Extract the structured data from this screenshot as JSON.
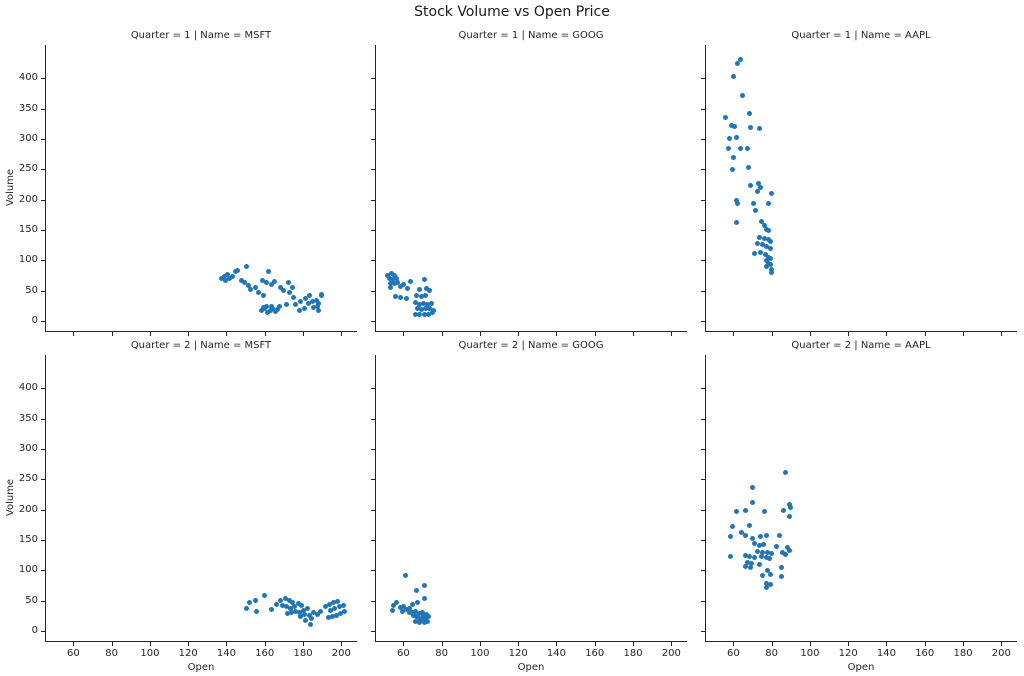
{
  "figure_title": "Stock Volume vs Open Price",
  "colors": {
    "dot": "#2176b5",
    "spine": "#262626",
    "text": "#262626"
  },
  "chart_data": {
    "type": "scatter",
    "title": "Stock Volume vs Open Price",
    "xlabel": "Open",
    "ylabel": "Volume",
    "xlim": [
      45.2,
      208.2
    ],
    "ylim": [
      -18.1,
      454.6
    ],
    "xticks": [
      60,
      80,
      100,
      120,
      140,
      160,
      180,
      200
    ],
    "yticks": [
      0,
      50,
      100,
      150,
      200,
      250,
      300,
      350,
      400
    ],
    "layout_hints": {
      "rows": 2,
      "cols": 3,
      "shared_x": true,
      "shared_y": true,
      "grid": false,
      "legend": "none",
      "spines": "left-bottom"
    },
    "facets": [
      {
        "row": 0,
        "col": 0,
        "title": "Quarter = 1 | Name = MSFT",
        "points": [
          [
            137.2,
            69.8
          ],
          [
            138.9,
            73.8
          ],
          [
            140.7,
            76.4
          ],
          [
            139.3,
            66.5
          ],
          [
            141.4,
            69.8
          ],
          [
            143.1,
            72.6
          ],
          [
            144.9,
            80.9
          ],
          [
            145.9,
            83
          ],
          [
            150.6,
            90.3
          ],
          [
            147.6,
            66.5
          ],
          [
            149.4,
            62.7
          ],
          [
            151.4,
            58.9
          ],
          [
            152.8,
            51.7
          ],
          [
            155.3,
            55.6
          ],
          [
            161.9,
            82
          ],
          [
            158.7,
            66.5
          ],
          [
            161,
            62.7
          ],
          [
            163.3,
            59.9
          ],
          [
            165,
            64.4
          ],
          [
            157,
            46.2
          ],
          [
            159.3,
            42.4
          ],
          [
            168,
            54.5
          ],
          [
            169.7,
            50
          ],
          [
            158.5,
            17
          ],
          [
            160,
            20
          ],
          [
            161.5,
            14.5
          ],
          [
            162.8,
            18
          ],
          [
            164.2,
            21
          ],
          [
            165.5,
            15.5
          ],
          [
            166.8,
            19
          ],
          [
            163.5,
            24
          ],
          [
            161,
            24.5
          ],
          [
            159.2,
            22.5
          ],
          [
            167.9,
            23.5
          ],
          [
            172.3,
            62.7
          ],
          [
            174.4,
            55.6
          ],
          [
            172.7,
            46.2
          ],
          [
            174.9,
            39.1
          ],
          [
            171.5,
            26.9
          ],
          [
            176.2,
            26.9
          ],
          [
            178.9,
            31.4
          ],
          [
            181.4,
            36.8
          ],
          [
            183.6,
            42.4
          ],
          [
            189.4,
            42.4
          ],
          [
            182.8,
            28.1
          ],
          [
            184.9,
            31.4
          ],
          [
            187.2,
            33.5
          ],
          [
            185.4,
            22.6
          ],
          [
            187.7,
            24.2
          ],
          [
            180.7,
            20.3
          ],
          [
            178.4,
            17
          ],
          [
            189.7,
            42.9
          ],
          [
            187.9,
            29.2
          ],
          [
            188.3,
            17
          ]
        ]
      },
      {
        "row": 0,
        "col": 1,
        "title": "Quarter = 1 | Name = GOOG",
        "points": [
          [
            51.7,
            74.8
          ],
          [
            53.6,
            77.6
          ],
          [
            55.2,
            74.8
          ],
          [
            52.7,
            69.3
          ],
          [
            54.5,
            68.8
          ],
          [
            56.2,
            70.5
          ],
          [
            53.4,
            62.2
          ],
          [
            55.2,
            61.1
          ],
          [
            56.9,
            63.9
          ],
          [
            53.1,
            55
          ],
          [
            58.3,
            56.6
          ],
          [
            60,
            59.4
          ],
          [
            63.5,
            64.9
          ],
          [
            62.1,
            53.9
          ],
          [
            55.7,
            40.1
          ],
          [
            58.3,
            38.4
          ],
          [
            61.4,
            37.4
          ],
          [
            71.3,
            67.7
          ],
          [
            68.7,
            51.2
          ],
          [
            72.2,
            52.8
          ],
          [
            67,
            41.3
          ],
          [
            69.6,
            40.1
          ],
          [
            71.8,
            41.8
          ],
          [
            73.9,
            49.5
          ],
          [
            66.1,
            30.2
          ],
          [
            68.3,
            27.5
          ],
          [
            70.4,
            29.2
          ],
          [
            72.5,
            27.5
          ],
          [
            74.8,
            29.2
          ],
          [
            67.3,
            19.8
          ],
          [
            69.6,
            18.2
          ],
          [
            71.8,
            19.8
          ],
          [
            73.9,
            20.9
          ],
          [
            66.6,
            11
          ],
          [
            68.7,
            9.9
          ],
          [
            71,
            9.9
          ],
          [
            73.1,
            11
          ],
          [
            75.4,
            14.3
          ],
          [
            76,
            16.5
          ]
        ]
      },
      {
        "row": 0,
        "col": 2,
        "title": "Quarter = 1 | Name = AAPL",
        "points": [
          [
            62.3,
            423.9
          ],
          [
            63.8,
            430.4
          ],
          [
            60,
            402
          ],
          [
            64.9,
            371.7
          ],
          [
            55.7,
            335.9
          ],
          [
            68.7,
            341.4
          ],
          [
            59.2,
            322.2
          ],
          [
            60.6,
            321
          ],
          [
            69,
            319.5
          ],
          [
            73.6,
            316.8
          ],
          [
            57.9,
            300.3
          ],
          [
            61.4,
            303
          ],
          [
            57.4,
            284.9
          ],
          [
            63.8,
            284.9
          ],
          [
            67.3,
            283.8
          ],
          [
            60,
            270
          ],
          [
            59.7,
            249.2
          ],
          [
            67.8,
            253.6
          ],
          [
            69.1,
            223.3
          ],
          [
            73.1,
            227.2
          ],
          [
            74,
            220
          ],
          [
            72.5,
            213.4
          ],
          [
            80.1,
            210.7
          ],
          [
            61.4,
            198.6
          ],
          [
            62.1,
            194.2
          ],
          [
            70.4,
            194.2
          ],
          [
            78.6,
            193
          ],
          [
            71.8,
            182
          ],
          [
            61.4,
            162.2
          ],
          [
            74.8,
            163.8
          ],
          [
            76.2,
            157.3
          ],
          [
            77.1,
            150.2
          ],
          [
            78.3,
            149
          ],
          [
            73.6,
            138.1
          ],
          [
            76.1,
            135.3
          ],
          [
            78.3,
            133.7
          ],
          [
            79.6,
            130.9
          ],
          [
            72.5,
            127
          ],
          [
            75.4,
            125.4
          ],
          [
            77.5,
            122.6
          ],
          [
            79.3,
            120
          ],
          [
            71.3,
            111.7
          ],
          [
            74,
            112.7
          ],
          [
            76.6,
            108.9
          ],
          [
            78.3,
            105.1
          ],
          [
            79.6,
            103.4
          ],
          [
            77.5,
            99.5
          ],
          [
            78.3,
            95.2
          ],
          [
            79.6,
            93.5
          ],
          [
            77.5,
            89.6
          ],
          [
            79.8,
            85.3
          ],
          [
            80.1,
            80.5
          ]
        ]
      },
      {
        "row": 1,
        "col": 0,
        "title": "Quarter = 2 | Name = MSFT",
        "points": [
          [
            151.8,
            46.7
          ],
          [
            155,
            51
          ],
          [
            159.8,
            58.7
          ],
          [
            150.6,
            36.8
          ],
          [
            155.5,
            32.9
          ],
          [
            163.7,
            35.7
          ],
          [
            165.9,
            43.9
          ],
          [
            168.4,
            51
          ],
          [
            170.6,
            53.2
          ],
          [
            172.9,
            51
          ],
          [
            174.6,
            46.7
          ],
          [
            169.4,
            42.2
          ],
          [
            171.5,
            40.1
          ],
          [
            173.6,
            36.8
          ],
          [
            175.8,
            41.1
          ],
          [
            177.6,
            45.5
          ],
          [
            179.3,
            42.2
          ],
          [
            176.3,
            32.9
          ],
          [
            174.1,
            30.2
          ],
          [
            171.8,
            29.1
          ],
          [
            178.1,
            31.2
          ],
          [
            180.1,
            34.5
          ],
          [
            182.2,
            36.8
          ],
          [
            181,
            27.4
          ],
          [
            178.8,
            23.7
          ],
          [
            183.3,
            25.8
          ],
          [
            181.5,
            18.1
          ],
          [
            184.5,
            20.4
          ],
          [
            185.7,
            31.2
          ],
          [
            187.4,
            27.4
          ],
          [
            189.2,
            32.9
          ],
          [
            192,
            40.1
          ],
          [
            193.7,
            43.9
          ],
          [
            195.8,
            46.7
          ],
          [
            197.9,
            49.3
          ],
          [
            194.4,
            34.5
          ],
          [
            196.7,
            36.8
          ],
          [
            198.9,
            40.1
          ],
          [
            201,
            42.2
          ],
          [
            193.2,
            22
          ],
          [
            195.5,
            23.7
          ],
          [
            197.6,
            25.8
          ],
          [
            199.7,
            29.1
          ],
          [
            201.9,
            32.9
          ],
          [
            184,
            11
          ]
        ]
      },
      {
        "row": 1,
        "col": 1,
        "title": "Quarter = 2 | Name = GOOG",
        "points": [
          [
            60.9,
            91.5
          ],
          [
            67,
            67.4
          ],
          [
            71,
            75.1
          ],
          [
            71.3,
            53.2
          ],
          [
            64.9,
            43.9
          ],
          [
            67.3,
            46.7
          ],
          [
            54.8,
            42.2
          ],
          [
            56.5,
            46.7
          ],
          [
            54.4,
            34.5
          ],
          [
            58.6,
            38.4
          ],
          [
            60.3,
            40.1
          ],
          [
            59.6,
            32.9
          ],
          [
            61.7,
            35.7
          ],
          [
            63.4,
            36.8
          ],
          [
            63.1,
            30.2
          ],
          [
            64.9,
            31.2
          ],
          [
            66.6,
            32.9
          ],
          [
            65.2,
            25.8
          ],
          [
            67,
            24.7
          ],
          [
            68.7,
            29.1
          ],
          [
            70.1,
            31.2
          ],
          [
            70.5,
            24.7
          ],
          [
            72.2,
            27.4
          ],
          [
            68.4,
            20.4
          ],
          [
            70.1,
            19.2
          ],
          [
            71.8,
            20.4
          ],
          [
            73,
            23.7
          ],
          [
            66.6,
            16.4
          ],
          [
            68.7,
            14.8
          ],
          [
            70.8,
            13.7
          ],
          [
            72.5,
            16.4
          ]
        ]
      },
      {
        "row": 1,
        "col": 2,
        "title": "Quarter = 2 | Name = AAPL",
        "points": [
          [
            87,
            261.3
          ],
          [
            70.1,
            235.6
          ],
          [
            70.1,
            211
          ],
          [
            89.6,
            208.2
          ],
          [
            89.9,
            202.8
          ],
          [
            61.4,
            197.2
          ],
          [
            66.1,
            198.8
          ],
          [
            76.5,
            197.2
          ],
          [
            86.4,
            198.8
          ],
          [
            89.2,
            188
          ],
          [
            59.7,
            171.5
          ],
          [
            68.3,
            173.7
          ],
          [
            64.4,
            162.7
          ],
          [
            58.6,
            156.1
          ],
          [
            66.1,
            157.3
          ],
          [
            70.1,
            151.8
          ],
          [
            74.3,
            155.1
          ],
          [
            77.1,
            157.3
          ],
          [
            84,
            157.3
          ],
          [
            71.3,
            144.1
          ],
          [
            73.6,
            140.8
          ],
          [
            76,
            142.5
          ],
          [
            82.3,
            139.7
          ],
          [
            88.2,
            137
          ],
          [
            89.2,
            133.1
          ],
          [
            72.5,
            131.5
          ],
          [
            75.3,
            128.8
          ],
          [
            77.7,
            129.8
          ],
          [
            80,
            127.7
          ],
          [
            85.8,
            129.8
          ],
          [
            87.5,
            126
          ],
          [
            58.3,
            122.2
          ],
          [
            66.6,
            124.4
          ],
          [
            68.7,
            122.2
          ],
          [
            70.8,
            120.6
          ],
          [
            74.8,
            122.2
          ],
          [
            77.1,
            120.6
          ],
          [
            79.1,
            119
          ],
          [
            67.3,
            113.4
          ],
          [
            69.6,
            111.3
          ],
          [
            73.6,
            109.6
          ],
          [
            66.6,
            106.8
          ],
          [
            69.1,
            104.2
          ],
          [
            85.2,
            104.2
          ],
          [
            77.7,
            100.2
          ],
          [
            75.3,
            91.5
          ],
          [
            79.5,
            93.2
          ],
          [
            85.2,
            89.4
          ],
          [
            77.5,
            78.4
          ],
          [
            79.5,
            76.7
          ],
          [
            77.1,
            72
          ]
        ]
      }
    ]
  }
}
